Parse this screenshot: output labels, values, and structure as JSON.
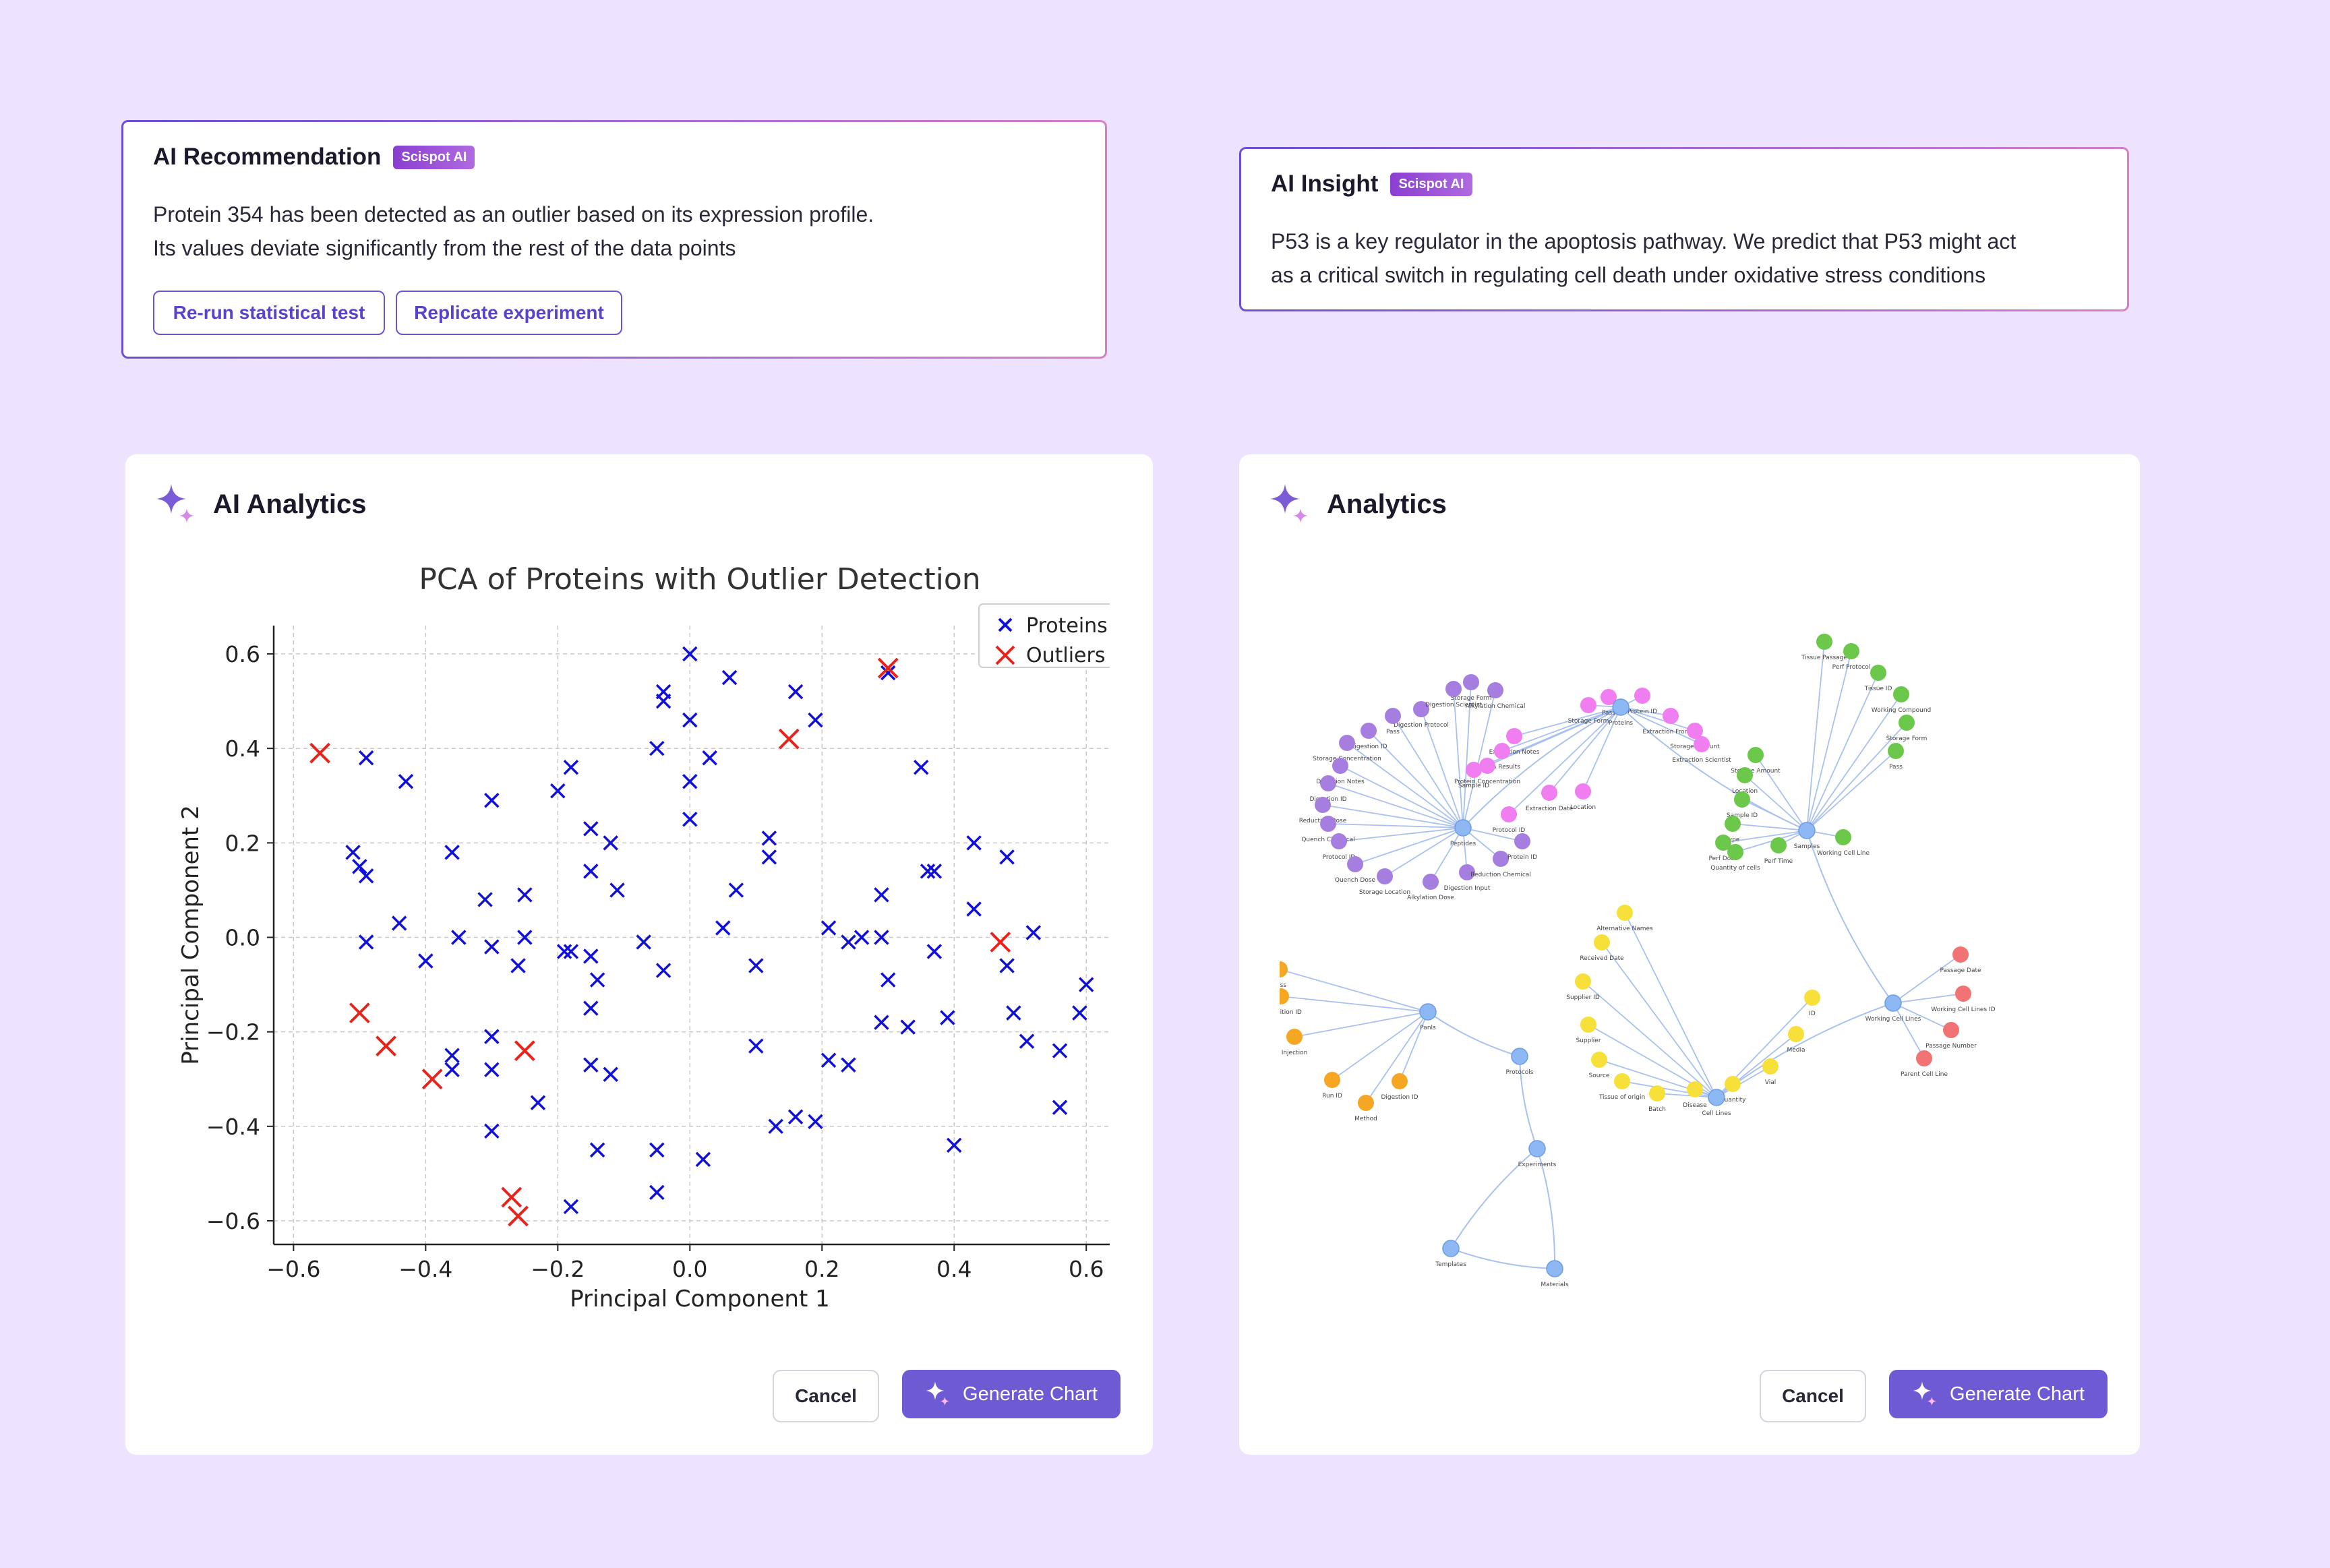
{
  "recommendation": {
    "title": "AI Recommendation",
    "badge": "Scispot AI",
    "line1": "Protein 354 has been detected as an outlier based on its expression profile.",
    "line2": "Its values deviate significantly from the rest of the data points",
    "btn_rerun": "Re-run statistical test",
    "btn_replicate": "Replicate experiment"
  },
  "insight": {
    "title": "AI Insight",
    "badge": "Scispot AI",
    "line1": "P53 is a key regulator in the apoptosis pathway.  We predict that P53 might act",
    "line2": "as a critical switch in regulating cell death under oxidative stress conditions"
  },
  "left_panel": {
    "title": "AI Analytics",
    "cancel_label": "Cancel",
    "generate_label": "Generate Chart"
  },
  "right_panel": {
    "title": "Analytics",
    "cancel_label": "Cancel",
    "generate_label": "Generate Chart"
  },
  "colors": {
    "accent": "#6e5bd4",
    "proteins": "#1010d8",
    "outliers": "#e8231b"
  },
  "chart_data": {
    "type": "scatter",
    "title": "PCA of Proteins with Outlier Detection",
    "xlabel": "Principal Component 1",
    "ylabel": "Principal Component 2",
    "xlim": [
      -0.63,
      0.66
    ],
    "ylim": [
      -0.65,
      0.66
    ],
    "xticks": [
      -0.6,
      -0.4,
      -0.2,
      0.0,
      0.2,
      0.4,
      0.6
    ],
    "xtick_labels": [
      "−0.6",
      "−0.4",
      "−0.2",
      "0.0",
      "0.2",
      "0.4",
      "0.6"
    ],
    "yticks": [
      -0.6,
      -0.4,
      -0.2,
      0.0,
      0.2,
      0.4,
      0.6
    ],
    "ytick_labels": [
      "−0.6",
      "−0.4",
      "−0.2",
      "0.0",
      "0.2",
      "0.4",
      "0.6"
    ],
    "grid": true,
    "legend": "top-right",
    "series": [
      {
        "name": "Proteins",
        "marker": "x",
        "points": [
          [
            0.0,
            0.6
          ],
          [
            -0.04,
            0.52
          ],
          [
            -0.04,
            0.5
          ],
          [
            0.06,
            0.55
          ],
          [
            0.16,
            0.52
          ],
          [
            0.19,
            0.46
          ],
          [
            0.3,
            0.56
          ],
          [
            -0.49,
            0.38
          ],
          [
            -0.43,
            0.33
          ],
          [
            -0.3,
            0.29
          ],
          [
            -0.18,
            0.36
          ],
          [
            -0.2,
            0.31
          ],
          [
            0.0,
            0.46
          ],
          [
            0.03,
            0.38
          ],
          [
            -0.05,
            0.4
          ],
          [
            0.0,
            0.33
          ],
          [
            0.35,
            0.36
          ],
          [
            -0.51,
            0.18
          ],
          [
            -0.5,
            0.15
          ],
          [
            -0.49,
            0.13
          ],
          [
            -0.36,
            0.18
          ],
          [
            -0.15,
            0.23
          ],
          [
            -0.12,
            0.2
          ],
          [
            -0.15,
            0.14
          ],
          [
            -0.11,
            0.1
          ],
          [
            0.0,
            0.25
          ],
          [
            0.12,
            0.21
          ],
          [
            0.12,
            0.17
          ],
          [
            0.07,
            0.1
          ],
          [
            0.29,
            0.09
          ],
          [
            0.36,
            0.14
          ],
          [
            0.37,
            0.14
          ],
          [
            0.43,
            0.2
          ],
          [
            0.48,
            0.17
          ],
          [
            0.43,
            0.06
          ],
          [
            -0.44,
            0.03
          ],
          [
            -0.49,
            -0.01
          ],
          [
            -0.4,
            -0.05
          ],
          [
            -0.31,
            0.08
          ],
          [
            -0.25,
            0.09
          ],
          [
            -0.35,
            0.0
          ],
          [
            -0.3,
            -0.02
          ],
          [
            -0.25,
            0.0
          ],
          [
            -0.26,
            -0.06
          ],
          [
            -0.19,
            -0.03
          ],
          [
            -0.18,
            -0.03
          ],
          [
            -0.15,
            -0.04
          ],
          [
            -0.14,
            -0.09
          ],
          [
            -0.07,
            -0.01
          ],
          [
            -0.04,
            -0.07
          ],
          [
            0.05,
            0.02
          ],
          [
            0.1,
            -0.06
          ],
          [
            0.21,
            0.02
          ],
          [
            0.24,
            -0.01
          ],
          [
            0.26,
            0.0
          ],
          [
            0.29,
            0.0
          ],
          [
            0.3,
            -0.09
          ],
          [
            0.37,
            -0.03
          ],
          [
            0.52,
            0.01
          ],
          [
            0.48,
            -0.06
          ],
          [
            -0.36,
            -0.25
          ],
          [
            -0.36,
            -0.28
          ],
          [
            -0.3,
            -0.21
          ],
          [
            -0.3,
            -0.28
          ],
          [
            -0.15,
            -0.15
          ],
          [
            -0.15,
            -0.27
          ],
          [
            -0.12,
            -0.29
          ],
          [
            -0.23,
            -0.35
          ],
          [
            0.1,
            -0.23
          ],
          [
            0.21,
            -0.26
          ],
          [
            0.24,
            -0.27
          ],
          [
            0.29,
            -0.18
          ],
          [
            0.33,
            -0.19
          ],
          [
            0.39,
            -0.17
          ],
          [
            0.49,
            -0.16
          ],
          [
            0.51,
            -0.22
          ],
          [
            0.56,
            -0.24
          ],
          [
            0.59,
            -0.16
          ],
          [
            0.6,
            -0.1
          ],
          [
            -0.3,
            -0.41
          ],
          [
            -0.14,
            -0.45
          ],
          [
            -0.05,
            -0.45
          ],
          [
            0.02,
            -0.47
          ],
          [
            0.13,
            -0.4
          ],
          [
            0.16,
            -0.38
          ],
          [
            0.19,
            -0.39
          ],
          [
            0.4,
            -0.44
          ],
          [
            0.56,
            -0.36
          ],
          [
            -0.05,
            -0.54
          ],
          [
            -0.18,
            -0.57
          ]
        ]
      },
      {
        "name": "Outliers",
        "marker": "x",
        "points": [
          [
            -0.56,
            0.39
          ],
          [
            0.15,
            0.42
          ],
          [
            0.3,
            0.57
          ],
          [
            0.47,
            -0.01
          ],
          [
            -0.5,
            -0.16
          ],
          [
            -0.46,
            -0.23
          ],
          [
            -0.39,
            -0.3
          ],
          [
            -0.25,
            -0.24
          ],
          [
            -0.27,
            -0.55
          ],
          [
            -0.26,
            -0.59
          ]
        ]
      }
    ]
  },
  "network": {
    "hubs": [
      {
        "id": "Proteins",
        "label": "Proteins"
      },
      {
        "id": "Peptides",
        "label": "Peptides"
      },
      {
        "id": "Samples",
        "label": "Samples"
      },
      {
        "id": "Panls",
        "label": "Panls"
      },
      {
        "id": "Protocols",
        "label": "Protocols"
      },
      {
        "id": "Experiments",
        "label": "Experiments"
      },
      {
        "id": "Templates",
        "label": "Templates"
      },
      {
        "id": "Materials",
        "label": "Materials"
      },
      {
        "id": "WCL",
        "label": "Working Cell Lines"
      },
      {
        "id": "CellLines",
        "label": "Cell Lines"
      }
    ],
    "leaf_groups": [
      {
        "hub": "Proteins",
        "color": "#f07ef0",
        "labels": [
          "Extraction Notes",
          "Storage Form",
          "Pass",
          "Protein ID",
          "Extraction Frontier",
          "Storage Amount",
          "Extraction Scientist",
          "Sample ID",
          "BCA Results",
          "Protein Concentration",
          "Protocol ID",
          "Extraction Date",
          "Location"
        ]
      },
      {
        "hub": "Peptides",
        "color": "#a67ee0",
        "labels": [
          "Digestion Protocol",
          "Pass",
          "Digestion ID",
          "Storage Concentration",
          "Digestion Notes",
          "Digestion ID",
          "Reduction Dose",
          "Quench Chemical",
          "Protocol ID",
          "Quench Dose",
          "Storage Location",
          "Alkylation Dose",
          "Digestion Input",
          "Reduction Chemical",
          "Protein ID",
          "Alkylation Chemical",
          "Storage Form",
          "Digestion Scientist"
        ]
      },
      {
        "hub": "Samples",
        "color": "#6cc84a",
        "labels": [
          "Tissue Passage",
          "Perf Protocol",
          "Tissue ID",
          "Working Compound",
          "Storage Form",
          "Pass",
          "Storage Amount",
          "Location",
          "Sample ID",
          "Type",
          "Perf Dose",
          "Quantity of cells",
          "Perf Time",
          "Working Cell Line"
        ]
      },
      {
        "hub": "Panls",
        "color": "#f5a623",
        "labels": [
          "Pass",
          "Acquisition ID",
          "Injection",
          "Run ID",
          "Method",
          "Digestion ID"
        ]
      },
      {
        "hub": "CellLines",
        "color": "#f8e03a",
        "labels": [
          "Alternative Names",
          "Received Date",
          "Supplier ID",
          "Supplier",
          "Source",
          "Tissue of origin",
          "Batch",
          "Disease",
          "Quantity",
          "Vial",
          "Media",
          "ID"
        ]
      },
      {
        "hub": "WCL",
        "color": "#f27373",
        "labels": [
          "Passage Date",
          "Working Cell Lines ID",
          "Passage Number",
          "Parent Cell Line"
        ]
      }
    ]
  }
}
